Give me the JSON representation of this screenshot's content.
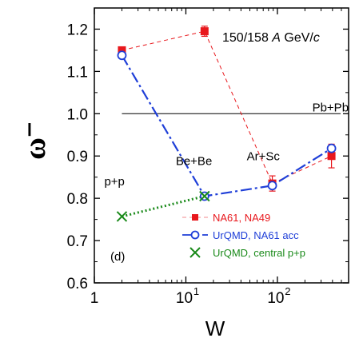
{
  "chart_data": {
    "type": "line",
    "ylabel": "ω⁻",
    "xlabel": "W",
    "energy_label": "150/158 A GeV/c",
    "panel_label": "(d)",
    "xscale": "log",
    "xlim": [
      1,
      600
    ],
    "ylim": [
      0.6,
      1.25
    ],
    "x_tick_labels": [
      "1",
      "10",
      "10",
      "2"
    ],
    "y_tick_values": [
      "0.6",
      "0.7",
      "0.8",
      "0.9",
      "1.0",
      "1.1",
      "1.2"
    ],
    "reference_line": 1.0,
    "annotations": [
      {
        "text": "p+p",
        "x": 2.0,
        "y": 0.8
      },
      {
        "text": "Be+Be",
        "x": 16,
        "y": 0.86
      },
      {
        "text": "Ar+Sc",
        "x": 88,
        "y": 0.89
      },
      {
        "text": "Pb+Pb",
        "x": 390,
        "y": 0.96
      }
    ],
    "series": [
      {
        "name": "NA61, NA49",
        "color": "#e8171c",
        "marker": "filled-square",
        "line": "dashed",
        "points": [
          {
            "x": 2.0,
            "y": 1.15,
            "err": 0.006
          },
          {
            "x": 16,
            "y": 1.195,
            "err": 0.012
          },
          {
            "x": 88,
            "y": 0.835,
            "err": 0.018
          },
          {
            "x": 390,
            "y": 0.9,
            "err": 0.028
          }
        ]
      },
      {
        "name": "UrQMD, NA61 acc",
        "color": "#1f3fd8",
        "marker": "open-circle",
        "line": "dash-dot",
        "points": [
          {
            "x": 2.0,
            "y": 1.138
          },
          {
            "x": 16,
            "y": 0.805
          },
          {
            "x": 88,
            "y": 0.83
          },
          {
            "x": 390,
            "y": 0.918
          }
        ]
      },
      {
        "name": "UrQMD, central p+p",
        "color": "#1a8a1a",
        "marker": "cross",
        "line": "dotted",
        "points": [
          {
            "x": 2.0,
            "y": 0.757
          },
          {
            "x": 16,
            "y": 0.805
          }
        ]
      }
    ],
    "legend_position": "lower-right"
  }
}
